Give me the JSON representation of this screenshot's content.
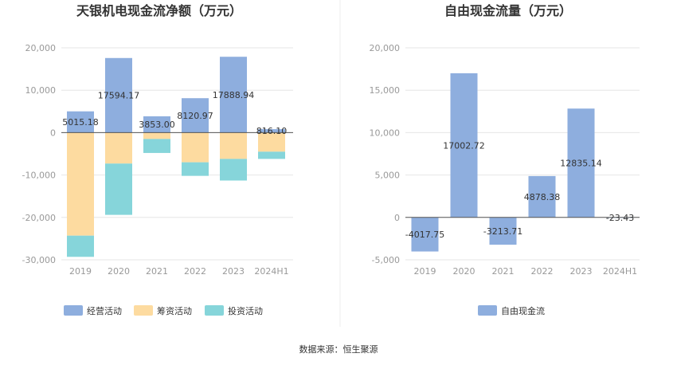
{
  "source_text": "数据来源：恒生聚源",
  "chart_data": [
    {
      "type": "bar",
      "stacked": true,
      "title": "天银机电现金流净额（万元）",
      "categories": [
        "2019",
        "2020",
        "2021",
        "2022",
        "2023",
        "2024H1"
      ],
      "ylim": [
        -30000,
        20000
      ],
      "yticks": [
        20000,
        10000,
        0,
        -10000,
        -20000,
        -30000
      ],
      "ytick_labels": [
        "20,000",
        "10,000",
        "0",
        "-10,000",
        "-20,000",
        "-30,000"
      ],
      "grid": true,
      "legend_position": "bottom",
      "series": [
        {
          "name": "经营活动",
          "color": "#8eaede",
          "values": [
            5015.18,
            17594.17,
            3853.0,
            8120.97,
            17888.94,
            816.1
          ]
        },
        {
          "name": "筹资活动",
          "color": "#fddba0",
          "values": [
            -24300,
            -7300,
            -1500,
            -7000,
            -6200,
            -4500
          ]
        },
        {
          "name": "投资活动",
          "color": "#86d5da",
          "values": [
            -5000,
            -12100,
            -3300,
            -3200,
            -5100,
            -1700
          ]
        }
      ],
      "data_labels": [
        "5015.18",
        "17594.17",
        "3853.00",
        "8120.97",
        "17888.94",
        "816.10"
      ]
    },
    {
      "type": "bar",
      "title": "自由现金流量（万元）",
      "categories": [
        "2019",
        "2020",
        "2021",
        "2022",
        "2023",
        "2024H1"
      ],
      "ylim": [
        -5000,
        20000
      ],
      "yticks": [
        20000,
        15000,
        10000,
        5000,
        0,
        -5000
      ],
      "ytick_labels": [
        "20,000",
        "15,000",
        "10,000",
        "5,000",
        "0",
        "-5,000"
      ],
      "grid": true,
      "legend_position": "bottom",
      "series": [
        {
          "name": "自由现金流",
          "color": "#8eaede",
          "values": [
            -4017.75,
            17002.72,
            -3213.71,
            4878.38,
            12835.14,
            -23.43
          ]
        }
      ],
      "data_labels": [
        "-4017.75",
        "17002.72",
        "-3213.71",
        "4878.38",
        "12835.14",
        "-23.43"
      ]
    }
  ]
}
